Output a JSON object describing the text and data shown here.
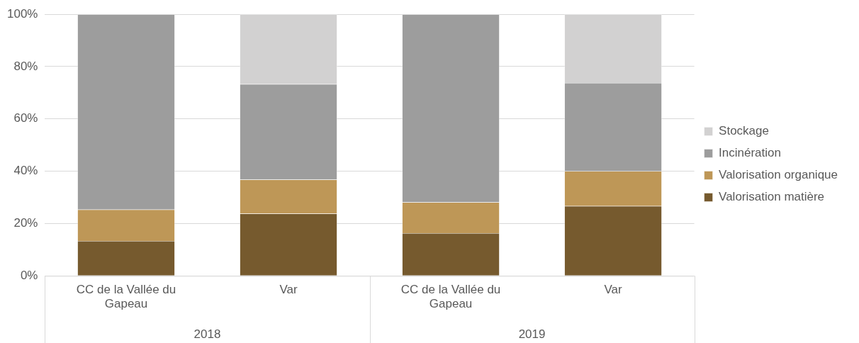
{
  "chart_data": {
    "type": "bar",
    "stacked": true,
    "categories": [
      "CC de la Vallée du Gapeau",
      "Var",
      "CC de la Vallée du Gapeau",
      "Var"
    ],
    "series": [
      {
        "name": "Valorisation matière",
        "color": "#765a2e",
        "values": [
          13.3,
          23.8,
          16.3,
          26.7
        ]
      },
      {
        "name": "Valorisation organique",
        "color": "#be9757",
        "values": [
          12.0,
          13.0,
          11.8,
          13.3
        ]
      },
      {
        "name": "Incinération",
        "color": "#9d9d9d",
        "values": [
          74.7,
          36.5,
          71.9,
          33.8
        ]
      },
      {
        "name": "Stockage",
        "color": "#d2d1d1",
        "values": [
          0,
          26.7,
          0,
          26.2
        ]
      }
    ],
    "ylim": [
      0,
      100
    ],
    "yticks": [
      {
        "value": 0,
        "label": "0%"
      },
      {
        "value": 20,
        "label": "20%"
      },
      {
        "value": 40,
        "label": "40%"
      },
      {
        "value": 60,
        "label": "60%"
      },
      {
        "value": 80,
        "label": "80%"
      },
      {
        "value": 100,
        "label": "100%"
      }
    ],
    "grid": "y",
    "legend": "right",
    "annotations": [
      "2018",
      "2019"
    ]
  }
}
